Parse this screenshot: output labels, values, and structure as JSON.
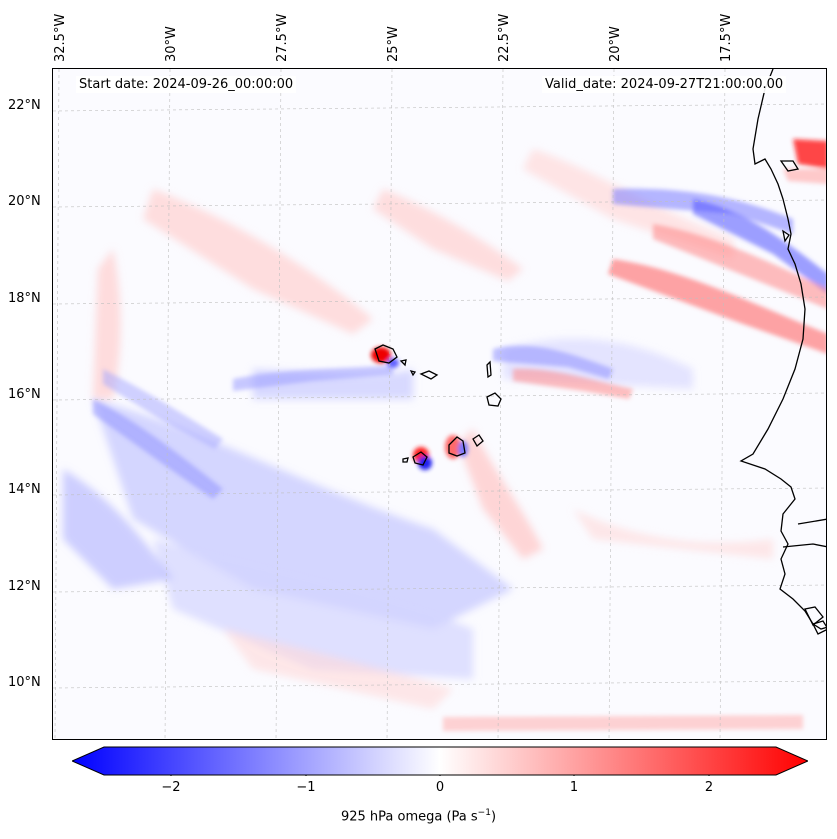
{
  "header": {
    "start_date": "Start date: 2024-09-26_00:00:00",
    "valid_date": "Valid_date: 2024-09-27T21:00:00.00"
  },
  "axes": {
    "lon_labels": [
      "32.5°W",
      "30°W",
      "27.5°W",
      "25°W",
      "22.5°W",
      "20°W",
      "17.5°W"
    ],
    "lat_labels": [
      "22°N",
      "20°N",
      "18°N",
      "16°N",
      "14°N",
      "12°N",
      "10°N"
    ]
  },
  "colorbar": {
    "ticks": [
      "−2",
      "−1",
      "0",
      "1",
      "2"
    ],
    "label_main": "925 hPa omega (Pa s",
    "label_exp": "−1",
    "label_end": ")",
    "range": [
      -2.5,
      2.5
    ],
    "colormap": "bwr",
    "color_neg": "#0000ff",
    "color_zero": "#ffffff",
    "color_pos": "#ff0000"
  },
  "map": {
    "extent_lon": [
      -32.7,
      -15.0
    ],
    "extent_lat": [
      8.9,
      22.8
    ],
    "projection": "PlateCarree",
    "gridlines": true,
    "coastlines": true,
    "features": [
      "Cape Verde islands",
      "West African coast"
    ]
  }
}
